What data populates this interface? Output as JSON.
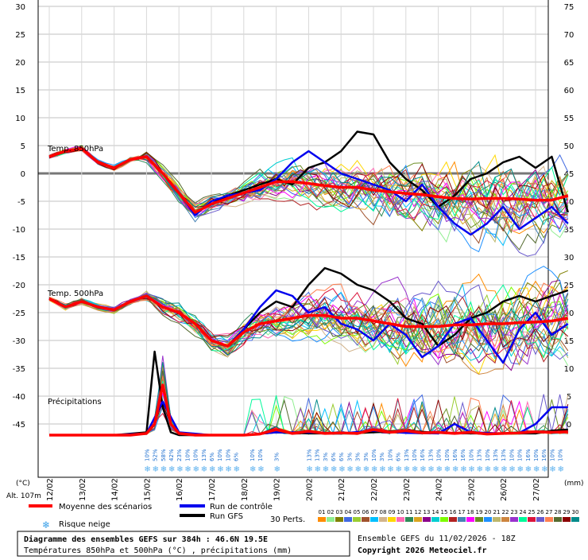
{
  "chart_data": {
    "type": "line",
    "title": "Diagramme des ensembles GEFS sur 384h : 46.6N 19.5E",
    "subtitle": "Températures 850hPa et 500hPa (°C) , précipitations (mm)",
    "run_info": "Ensemble GEFS du 11/02/2026 - 18Z",
    "copyright": "Copyright 2026 Meteociel.fr",
    "altitude_label": "Alt. 107m",
    "y_left_unit": "(°C)",
    "y_right_unit": "(mm)",
    "y_left_ticks": [
      "30",
      "25",
      "20",
      "15",
      "10",
      "5",
      "0",
      "-5",
      "-10",
      "-15",
      "-20",
      "-25",
      "-30",
      "-35",
      "-40",
      "-45"
    ],
    "y_right_ticks": [
      "75",
      "70",
      "65",
      "60",
      "55",
      "50",
      "45",
      "40",
      "35",
      "30",
      "25",
      "20",
      "15",
      "10",
      "5",
      "0"
    ],
    "ylim_left": [
      -45,
      30
    ],
    "ylim_right": [
      0,
      75
    ],
    "x_dates": [
      "12/02",
      "13/02",
      "14/02",
      "15/02",
      "16/02",
      "17/02",
      "18/02",
      "19/02",
      "20/02",
      "21/02",
      "22/02",
      "23/02",
      "24/02",
      "25/02",
      "26/02",
      "27/02"
    ],
    "panel_labels": {
      "t850": "Temp. 850hPa",
      "t500": "Temp. 500hPa",
      "precip": "Précipitations"
    },
    "snow_risk_pct": [
      {
        "t": 3.0,
        "v": "10%"
      },
      {
        "t": 3.25,
        "v": "52%"
      },
      {
        "t": 3.5,
        "v": "58%"
      },
      {
        "t": 3.75,
        "v": "42%"
      },
      {
        "t": 4.0,
        "v": "23%"
      },
      {
        "t": 4.25,
        "v": "10%"
      },
      {
        "t": 4.5,
        "v": "10%"
      },
      {
        "t": 4.75,
        "v": "13%"
      },
      {
        "t": 5.0,
        "v": "6%"
      },
      {
        "t": 5.25,
        "v": "10%"
      },
      {
        "t": 5.5,
        "v": "10%"
      },
      {
        "t": 5.75,
        "v": "6%"
      },
      {
        "t": 6.25,
        "v": "10%"
      },
      {
        "t": 6.5,
        "v": "10%"
      },
      {
        "t": 7.0,
        "v": "3%"
      },
      {
        "t": 8.0,
        "v": "13%"
      },
      {
        "t": 8.25,
        "v": "13%"
      },
      {
        "t": 8.5,
        "v": "3%"
      },
      {
        "t": 8.75,
        "v": "6%"
      },
      {
        "t": 9.0,
        "v": "6%"
      },
      {
        "t": 9.25,
        "v": "3%"
      },
      {
        "t": 9.5,
        "v": "3%"
      },
      {
        "t": 9.75,
        "v": "3%"
      },
      {
        "t": 10.0,
        "v": "10%"
      },
      {
        "t": 10.25,
        "v": "3%"
      },
      {
        "t": 10.5,
        "v": "10%"
      },
      {
        "t": 10.75,
        "v": "6%"
      },
      {
        "t": 11.0,
        "v": "13%"
      },
      {
        "t": 11.25,
        "v": "10%"
      },
      {
        "t": 11.5,
        "v": "16%"
      },
      {
        "t": 11.75,
        "v": "13%"
      },
      {
        "t": 12.0,
        "v": "10%"
      },
      {
        "t": 12.25,
        "v": "10%"
      },
      {
        "t": 12.5,
        "v": "16%"
      },
      {
        "t": 12.75,
        "v": "16%"
      },
      {
        "t": 13.0,
        "v": "10%"
      },
      {
        "t": 13.25,
        "v": "13%"
      },
      {
        "t": 13.5,
        "v": "10%"
      },
      {
        "t": 13.75,
        "v": "13%"
      },
      {
        "t": 14.0,
        "v": "13%"
      },
      {
        "t": 14.25,
        "v": "10%"
      },
      {
        "t": 14.5,
        "v": "10%"
      },
      {
        "t": 14.75,
        "v": "16%"
      },
      {
        "t": 15.0,
        "v": "10%"
      },
      {
        "t": 15.25,
        "v": "16%"
      },
      {
        "t": 15.5,
        "v": "10%"
      },
      {
        "t": 15.75,
        "v": "10%"
      }
    ],
    "series": [
      {
        "name": "Moyenne des scénarios",
        "color": "#ff0000",
        "panel": "t850",
        "x": [
          0,
          0.5,
          1,
          1.5,
          2,
          2.5,
          3,
          3.5,
          4,
          4.5,
          5,
          5.5,
          6,
          6.5,
          7,
          7.5,
          8,
          8.5,
          9,
          9.5,
          10,
          10.5,
          11,
          11.5,
          12,
          12.5,
          13,
          13.5,
          14,
          14.5,
          15,
          15.5,
          16
        ],
        "y": [
          3,
          4,
          4.5,
          2,
          1,
          2.5,
          3,
          0,
          -3.5,
          -7,
          -5.5,
          -4.5,
          -3.5,
          -2.5,
          -1.5,
          -1.5,
          -1.8,
          -2.2,
          -2.5,
          -2.5,
          -3,
          -3.3,
          -3.6,
          -3.8,
          -4.2,
          -4.5,
          -4.6,
          -4.5,
          -4.5,
          -4.6,
          -4.8,
          -4.8,
          -4
        ]
      },
      {
        "name": "Moyenne des scénarios",
        "color": "#ff0000",
        "panel": "t500",
        "x": [
          0,
          0.5,
          1,
          1.5,
          2,
          2.5,
          3,
          3.5,
          4,
          4.5,
          5,
          5.5,
          6,
          6.5,
          7,
          7.5,
          8,
          8.5,
          9,
          9.5,
          10,
          10.5,
          11,
          11.5,
          12,
          12.5,
          13,
          13.5,
          14,
          14.5,
          15,
          15.5,
          16
        ],
        "y": [
          -22.5,
          -24,
          -23,
          -24,
          -24.5,
          -23,
          -22,
          -24,
          -25,
          -27,
          -30,
          -31,
          -28.5,
          -27,
          -26.5,
          -26,
          -25.5,
          -25.5,
          -26,
          -26,
          -26.5,
          -27,
          -27.5,
          -27.5,
          -27.5,
          -27.2,
          -27.2,
          -27,
          -27,
          -26.8,
          -26.7,
          -26.5,
          -26
        ]
      },
      {
        "name": "Moyenne des scénarios",
        "color": "#ff0000",
        "panel": "precip",
        "x": [
          0,
          0.5,
          1,
          1.5,
          2,
          2.5,
          3,
          3.25,
          3.5,
          3.75,
          4,
          4.5,
          5,
          5.5,
          6,
          6.5,
          7,
          7.5,
          8,
          8.5,
          9,
          9.5,
          10,
          10.5,
          11,
          11.5,
          12,
          12.5,
          13,
          13.5,
          14,
          14.5,
          15,
          15.5,
          16
        ],
        "y": [
          0,
          0,
          0,
          0,
          0,
          0,
          0.3,
          2,
          9,
          2,
          0.3,
          0,
          0,
          0,
          0,
          0.2,
          1,
          0.3,
          0.7,
          0.3,
          0.4,
          0.3,
          1,
          0.5,
          0.8,
          0.4,
          0.5,
          0.3,
          0.5,
          0.2,
          0.3,
          0.4,
          0.6,
          0.5,
          0.6
        ]
      },
      {
        "name": "Run de contrôle",
        "color": "#0000ee",
        "panel": "t850",
        "x": [
          0,
          0.5,
          1,
          1.5,
          2,
          2.5,
          3,
          3.5,
          4,
          4.5,
          5,
          5.5,
          6,
          6.5,
          7,
          7.5,
          8,
          8.5,
          9,
          9.5,
          10,
          10.5,
          11,
          11.5,
          12,
          12.5,
          13,
          13.5,
          14,
          14.5,
          15,
          15.5,
          16
        ],
        "y": [
          3,
          4,
          4.5,
          2,
          1,
          2.5,
          3,
          0,
          -3.5,
          -7.5,
          -5,
          -4,
          -3.5,
          -3,
          -1,
          2,
          4,
          2,
          0,
          -1,
          -2,
          -3,
          -5,
          -2,
          -6,
          -9,
          -11,
          -9,
          -6,
          -10,
          -8,
          -6,
          -9
        ]
      },
      {
        "name": "Run de contrôle",
        "color": "#0000ee",
        "panel": "t500",
        "x": [
          0,
          0.5,
          1,
          1.5,
          2,
          2.5,
          3,
          3.5,
          4,
          4.5,
          5,
          5.5,
          6,
          6.5,
          7,
          7.5,
          8,
          8.5,
          9,
          9.5,
          10,
          10.5,
          11,
          11.5,
          12,
          12.5,
          13,
          13.5,
          14,
          14.5,
          15,
          15.5,
          16
        ],
        "y": [
          -22.5,
          -24,
          -23,
          -24,
          -24.5,
          -23,
          -22,
          -24,
          -25,
          -27,
          -30,
          -31,
          -28,
          -24,
          -21,
          -22,
          -25,
          -24,
          -27,
          -28,
          -30,
          -27,
          -29,
          -33,
          -31,
          -27,
          -26,
          -30,
          -34,
          -28,
          -25,
          -29,
          -27
        ]
      },
      {
        "name": "Run de contrôle",
        "color": "#0000ee",
        "panel": "precip",
        "x": [
          0,
          1,
          2,
          3,
          3.5,
          4,
          5,
          6,
          7,
          8,
          9,
          10,
          11,
          12,
          12.5,
          13,
          14,
          14.5,
          15,
          15.5,
          16
        ],
        "y": [
          0,
          0,
          0,
          0.3,
          6,
          0.5,
          0,
          0,
          0.5,
          0.5,
          0.3,
          0.8,
          0.4,
          0.3,
          2,
          0.5,
          0.3,
          0.4,
          2,
          5,
          5
        ]
      },
      {
        "name": "Run GFS",
        "color": "#000000",
        "panel": "t850",
        "x": [
          0,
          0.5,
          1,
          1.5,
          2,
          2.5,
          3,
          3.5,
          4,
          4.5,
          5,
          5.5,
          6,
          6.5,
          7,
          7.5,
          8,
          8.5,
          9,
          9.5,
          10,
          10.5,
          11,
          11.5,
          12,
          12.5,
          13,
          13.5,
          14,
          14.5,
          15,
          15.5,
          16
        ],
        "y": [
          3,
          4,
          4.5,
          2,
          1,
          2.5,
          3,
          0,
          -3.5,
          -7,
          -5.5,
          -4,
          -3,
          -2,
          -1,
          -2,
          1,
          2,
          4,
          7.5,
          7,
          2,
          -1,
          -3,
          -6,
          -4,
          -1,
          0,
          2,
          3,
          1,
          3,
          -7
        ]
      },
      {
        "name": "Run GFS",
        "color": "#000000",
        "panel": "t500",
        "x": [
          0,
          0.5,
          1,
          1.5,
          2,
          2.5,
          3,
          3.5,
          4,
          4.5,
          5,
          5.5,
          6,
          6.5,
          7,
          7.5,
          8,
          8.5,
          9,
          9.5,
          10,
          10.5,
          11,
          11.5,
          12,
          12.5,
          13,
          13.5,
          14,
          14.5,
          15,
          15.5,
          16
        ],
        "y": [
          -22.5,
          -24,
          -23,
          -24,
          -24.5,
          -23,
          -22,
          -24,
          -25,
          -27,
          -30,
          -31,
          -28,
          -25,
          -23,
          -24,
          -20,
          -17,
          -18,
          -20,
          -21,
          -23,
          -26,
          -27,
          -31,
          -29,
          -26,
          -25,
          -23,
          -22,
          -23,
          -22,
          -21
        ]
      },
      {
        "name": "Run GFS",
        "color": "#000000",
        "panel": "precip",
        "x": [
          0,
          1,
          2,
          3,
          3.25,
          3.5,
          3.75,
          4,
          5,
          6,
          7,
          8,
          9,
          10,
          11,
          12,
          13,
          14,
          15,
          15.5,
          16
        ],
        "y": [
          0,
          0,
          0,
          0.5,
          15,
          5,
          0.5,
          0,
          0,
          0,
          0.5,
          0.3,
          0.3,
          0.5,
          0.8,
          0.4,
          0.3,
          0.3,
          0.3,
          0.8,
          1
        ]
      }
    ],
    "legend": {
      "mean": "Moyenne des scénarios",
      "control": "Run de contrôle",
      "gfs": "Run GFS",
      "snow": "Risque neige",
      "perts_label": "30 Perts.",
      "perts": [
        "01",
        "02",
        "03",
        "04",
        "05",
        "06",
        "07",
        "08",
        "09",
        "10",
        "11",
        "12",
        "13",
        "14",
        "15",
        "16",
        "17",
        "18",
        "19",
        "20",
        "21",
        "22",
        "23",
        "24",
        "25",
        "26",
        "27",
        "28",
        "29",
        "30"
      ],
      "pert_colors": [
        "#ff8c00",
        "#90ee90",
        "#808000",
        "#4169e1",
        "#9acd32",
        "#a0522d",
        "#00bfff",
        "#d2b48c",
        "#ffd700",
        "#ff69b4",
        "#2e8b57",
        "#daa520",
        "#8b008b",
        "#00ced1",
        "#7cfc00",
        "#b22222",
        "#4682b4",
        "#ff00ff",
        "#6b8e23",
        "#1e90ff",
        "#bdb76b",
        "#cd853f",
        "#9932cc",
        "#00fa9a",
        "#dc143c",
        "#6a5acd",
        "#ff7f50",
        "#556b2f",
        "#8b0000",
        "#008b8b"
      ]
    }
  }
}
